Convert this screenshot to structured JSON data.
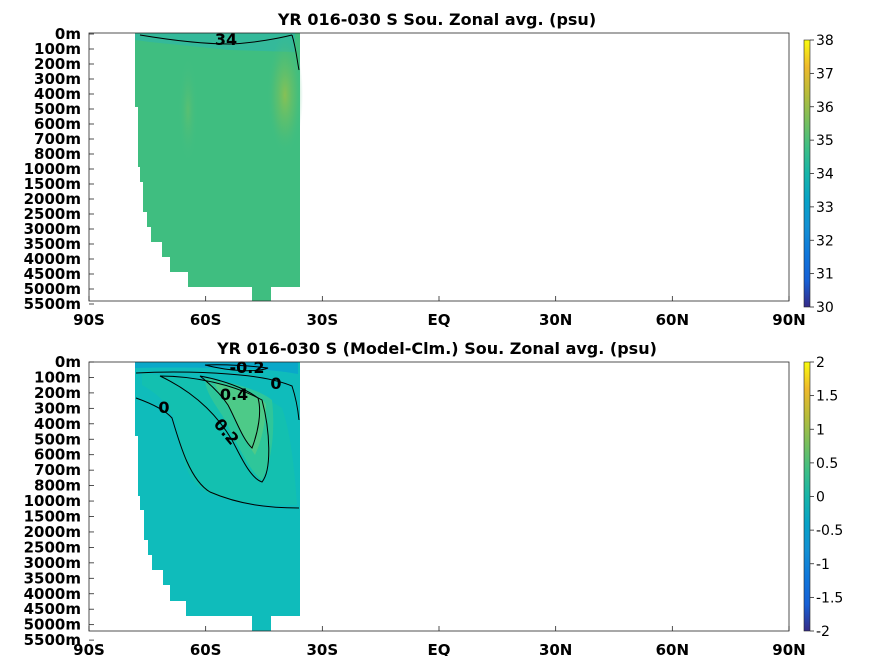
{
  "chart_data": [
    {
      "type": "heatmap",
      "title": "YR 016-030 S Sou. Zonal avg. (psu)",
      "x_tick_labels": [
        "90S",
        "60S",
        "30S",
        "EQ",
        "30N",
        "60N",
        "90N"
      ],
      "x_tick_values": [
        -90,
        -60,
        -30,
        0,
        30,
        60,
        90
      ],
      "xlim": [
        -90,
        90
      ],
      "y_tick_labels": [
        "0m",
        "100m",
        "200m",
        "300m",
        "400m",
        "500m",
        "600m",
        "700m",
        "800m",
        "1000m",
        "1500m",
        "2000m",
        "2500m",
        "3000m",
        "3500m",
        "4000m",
        "4500m",
        "5000m",
        "5500m"
      ],
      "y_tick_values": [
        0,
        100,
        200,
        300,
        400,
        500,
        600,
        700,
        800,
        1000,
        1500,
        2000,
        2500,
        3000,
        3500,
        4000,
        4500,
        5000,
        5500
      ],
      "y_axis": "depth, stretched (upper 1000 m expanded), increasing downward",
      "colorbar": {
        "labels": [
          "30",
          "31",
          "32",
          "33",
          "34",
          "35",
          "36",
          "37",
          "38"
        ],
        "range": [
          30,
          38
        ],
        "colormap": "parula"
      },
      "data_extent_lat": [
        -78,
        -35
      ],
      "contours": [
        {
          "value": 34,
          "label": "34"
        }
      ],
      "grid": false
    },
    {
      "type": "heatmap",
      "title": "YR 016-030 S (Model-Clm.) Sou. Zonal avg. (psu)",
      "x_tick_labels": [
        "90S",
        "60S",
        "30S",
        "EQ",
        "30N",
        "60N",
        "90N"
      ],
      "x_tick_values": [
        -90,
        -60,
        -30,
        0,
        30,
        60,
        90
      ],
      "xlim": [
        -90,
        90
      ],
      "y_tick_labels": [
        "0m",
        "100m",
        "200m",
        "300m",
        "400m",
        "500m",
        "600m",
        "700m",
        "800m",
        "1000m",
        "1500m",
        "2000m",
        "2500m",
        "3000m",
        "3500m",
        "4000m",
        "4500m",
        "5000m",
        "5500m"
      ],
      "y_tick_values": [
        0,
        100,
        200,
        300,
        400,
        500,
        600,
        700,
        800,
        1000,
        1500,
        2000,
        2500,
        3000,
        3500,
        4000,
        4500,
        5000,
        5500
      ],
      "y_axis": "depth, stretched (upper 1000 m expanded), increasing downward",
      "colorbar": {
        "labels": [
          "-2",
          "-1.5",
          "-1",
          "-0.5",
          "0",
          "0.5",
          "1",
          "1.5",
          "2"
        ],
        "range": [
          -2,
          2
        ],
        "colormap": "parula"
      },
      "data_extent_lat": [
        -78,
        -35
      ],
      "contours": [
        {
          "value": -0.2,
          "label": "-0.2"
        },
        {
          "value": 0,
          "label": "0"
        },
        {
          "value": 0,
          "label": "0"
        },
        {
          "value": 0.4,
          "label": "0.4"
        },
        {
          "value": 0.2,
          "label": "0.2"
        }
      ],
      "grid": false
    }
  ]
}
